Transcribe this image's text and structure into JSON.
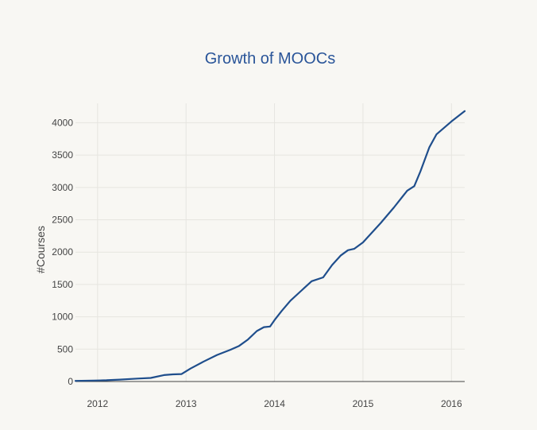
{
  "chart_data": {
    "type": "line",
    "title": "Growth of MOOCs",
    "xlabel": "",
    "ylabel": "#Courses",
    "xlim": [
      2011.75,
      2016.15
    ],
    "ylim": [
      0,
      4300
    ],
    "xticks": [
      2012,
      2013,
      2014,
      2015,
      2016
    ],
    "yticks": [
      0,
      500,
      1000,
      1500,
      2000,
      2500,
      3000,
      3500,
      4000
    ],
    "grid": true,
    "legend": "none",
    "series": [
      {
        "name": "",
        "color": "#1f4e8c",
        "x": [
          2011.75,
          2011.95,
          2012.1,
          2012.25,
          2012.45,
          2012.6,
          2012.75,
          2012.85,
          2012.95,
          2013.05,
          2013.2,
          2013.35,
          2013.5,
          2013.6,
          2013.7,
          2013.8,
          2013.88,
          2013.95,
          2014.0,
          2014.08,
          2014.18,
          2014.3,
          2014.42,
          2014.55,
          2014.65,
          2014.75,
          2014.83,
          2014.9,
          2015.0,
          2015.1,
          2015.2,
          2015.35,
          2015.5,
          2015.58,
          2015.65,
          2015.75,
          2015.83,
          2016.0,
          2016.15
        ],
        "values": [
          10,
          15,
          20,
          30,
          45,
          55,
          100,
          110,
          115,
          200,
          310,
          410,
          490,
          550,
          650,
          780,
          840,
          850,
          950,
          1090,
          1250,
          1400,
          1550,
          1610,
          1800,
          1950,
          2030,
          2050,
          2150,
          2300,
          2450,
          2690,
          2950,
          3020,
          3250,
          3620,
          3820,
          4020,
          4180
        ]
      }
    ]
  },
  "colors": {
    "background": "#f8f7f3",
    "title": "#2a5599",
    "line": "#1f4e8c",
    "grid": "#e6e5e0",
    "zeroline": "#444444"
  }
}
